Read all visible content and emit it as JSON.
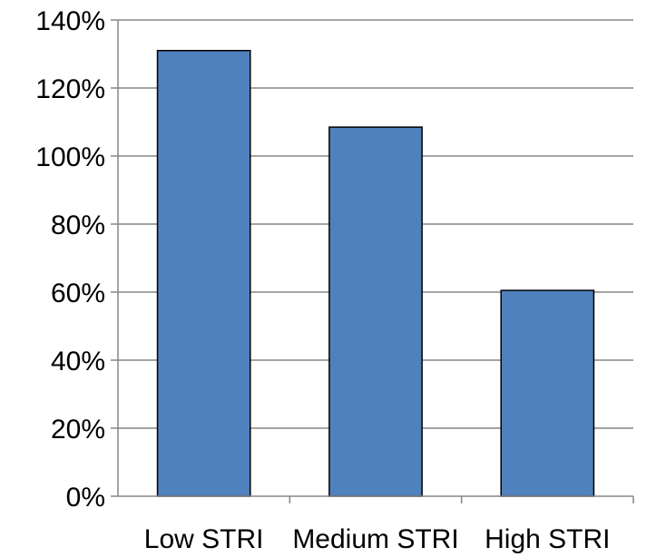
{
  "chart_data": {
    "type": "bar",
    "title": "",
    "xlabel": "",
    "ylabel": "",
    "categories": [
      "Low STRI",
      "Medium STRI",
      "High STRI"
    ],
    "values": [
      131,
      108.5,
      60.5
    ],
    "value_unit": "%",
    "ylim": [
      0,
      140
    ],
    "yticks": [
      0,
      20,
      40,
      60,
      80,
      100,
      120,
      140
    ],
    "ytick_labels": [
      "0%",
      "20%",
      "40%",
      "60%",
      "80%",
      "100%",
      "120%",
      "140%"
    ],
    "grid": true,
    "legend": "none",
    "bar_color": "#4F81BD"
  }
}
